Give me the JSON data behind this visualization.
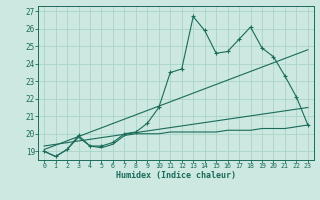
{
  "title": "",
  "xlabel": "Humidex (Indice chaleur)",
  "ylabel": "",
  "background_color": "#cce8e0",
  "grid_color": "#aad4c8",
  "line_color": "#1a6b5a",
  "xlim": [
    -0.5,
    23.5
  ],
  "ylim": [
    18.5,
    27.3
  ],
  "yticks": [
    19,
    20,
    21,
    22,
    23,
    24,
    25,
    26,
    27
  ],
  "xticks": [
    0,
    1,
    2,
    3,
    4,
    5,
    6,
    7,
    8,
    9,
    10,
    11,
    12,
    13,
    14,
    15,
    16,
    17,
    18,
    19,
    20,
    21,
    22,
    23
  ],
  "series1_x": [
    0,
    1,
    2,
    3,
    4,
    5,
    6,
    7,
    8,
    9,
    10,
    11,
    12,
    13,
    14,
    15,
    16,
    17,
    18,
    19,
    20,
    21,
    22,
    23
  ],
  "series1_y": [
    19.0,
    18.7,
    19.1,
    19.9,
    19.3,
    19.3,
    19.5,
    20.0,
    20.1,
    20.6,
    21.5,
    23.5,
    23.7,
    26.7,
    25.9,
    24.6,
    24.7,
    25.4,
    26.1,
    24.9,
    24.4,
    23.3,
    22.1,
    20.5
  ],
  "series2_x": [
    0,
    1,
    2,
    3,
    4,
    5,
    6,
    7,
    8,
    9,
    10,
    11,
    12,
    13,
    14,
    15,
    16,
    17,
    18,
    19,
    20,
    21,
    22,
    23
  ],
  "series2_y": [
    19.0,
    18.7,
    19.1,
    19.8,
    19.3,
    19.2,
    19.4,
    19.9,
    20.0,
    20.0,
    20.0,
    20.1,
    20.1,
    20.1,
    20.1,
    20.1,
    20.2,
    20.2,
    20.2,
    20.3,
    20.3,
    20.3,
    20.4,
    20.5
  ],
  "trend1_x": [
    0,
    23
  ],
  "trend1_y": [
    19.1,
    24.8
  ],
  "trend2_x": [
    0,
    23
  ],
  "trend2_y": [
    19.3,
    21.5
  ]
}
